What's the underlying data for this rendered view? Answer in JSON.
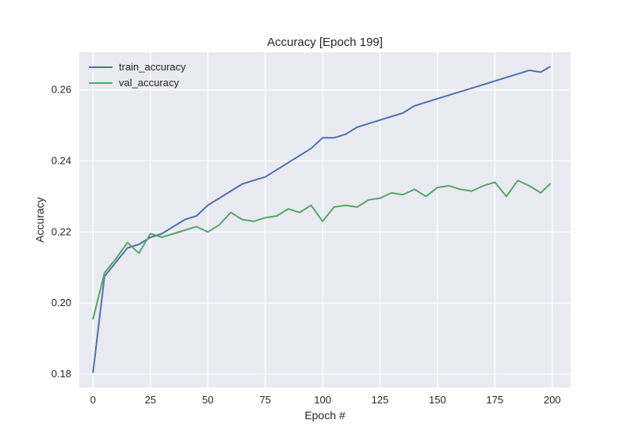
{
  "chart_data": {
    "type": "line",
    "title": "Accuracy [Epoch 199]",
    "xlabel": "Epoch #",
    "ylabel": "Accuracy",
    "xlim": [
      -6,
      208
    ],
    "ylim": [
      0.1762,
      0.2706
    ],
    "xticks": [
      0,
      25,
      50,
      75,
      100,
      125,
      150,
      175,
      200
    ],
    "yticks": [
      0.18,
      0.2,
      0.22,
      0.24,
      0.26
    ],
    "xtick_labels": [
      "0",
      "25",
      "50",
      "75",
      "100",
      "125",
      "150",
      "175",
      "200"
    ],
    "ytick_labels": [
      "0.18",
      "0.20",
      "0.22",
      "0.24",
      "0.26"
    ],
    "grid": true,
    "legend_position": "top-left",
    "x": [
      0,
      5,
      10,
      15,
      20,
      25,
      30,
      35,
      40,
      45,
      50,
      55,
      60,
      65,
      70,
      75,
      80,
      85,
      90,
      95,
      100,
      105,
      110,
      115,
      120,
      125,
      130,
      135,
      140,
      145,
      150,
      155,
      160,
      165,
      170,
      175,
      180,
      185,
      190,
      195,
      199
    ],
    "series": [
      {
        "name": "train_accuracy",
        "color": "#4c72b0",
        "values": [
          0.1805,
          0.2075,
          0.2115,
          0.2155,
          0.2165,
          0.2185,
          0.2195,
          0.2215,
          0.2235,
          0.2245,
          0.2275,
          0.2295,
          0.2315,
          0.2335,
          0.2345,
          0.2355,
          0.2375,
          0.2395,
          0.2415,
          0.2435,
          0.2465,
          0.2465,
          0.2475,
          0.2495,
          0.2505,
          0.2515,
          0.2525,
          0.2535,
          0.2555,
          0.2565,
          0.2575,
          0.2585,
          0.2595,
          0.2605,
          0.2615,
          0.2625,
          0.2635,
          0.2645,
          0.2655,
          0.265,
          0.2665
        ]
      },
      {
        "name": "val_accuracy",
        "color": "#55a868",
        "values": [
          0.1955,
          0.2085,
          0.2125,
          0.217,
          0.214,
          0.2195,
          0.2185,
          0.2195,
          0.2205,
          0.2215,
          0.22,
          0.222,
          0.2255,
          0.2235,
          0.223,
          0.224,
          0.2245,
          0.2265,
          0.2255,
          0.2275,
          0.223,
          0.227,
          0.2275,
          0.227,
          0.229,
          0.2295,
          0.231,
          0.2305,
          0.232,
          0.23,
          0.2325,
          0.233,
          0.232,
          0.2315,
          0.233,
          0.234,
          0.23,
          0.2345,
          0.233,
          0.231,
          0.2335
        ]
      }
    ]
  }
}
